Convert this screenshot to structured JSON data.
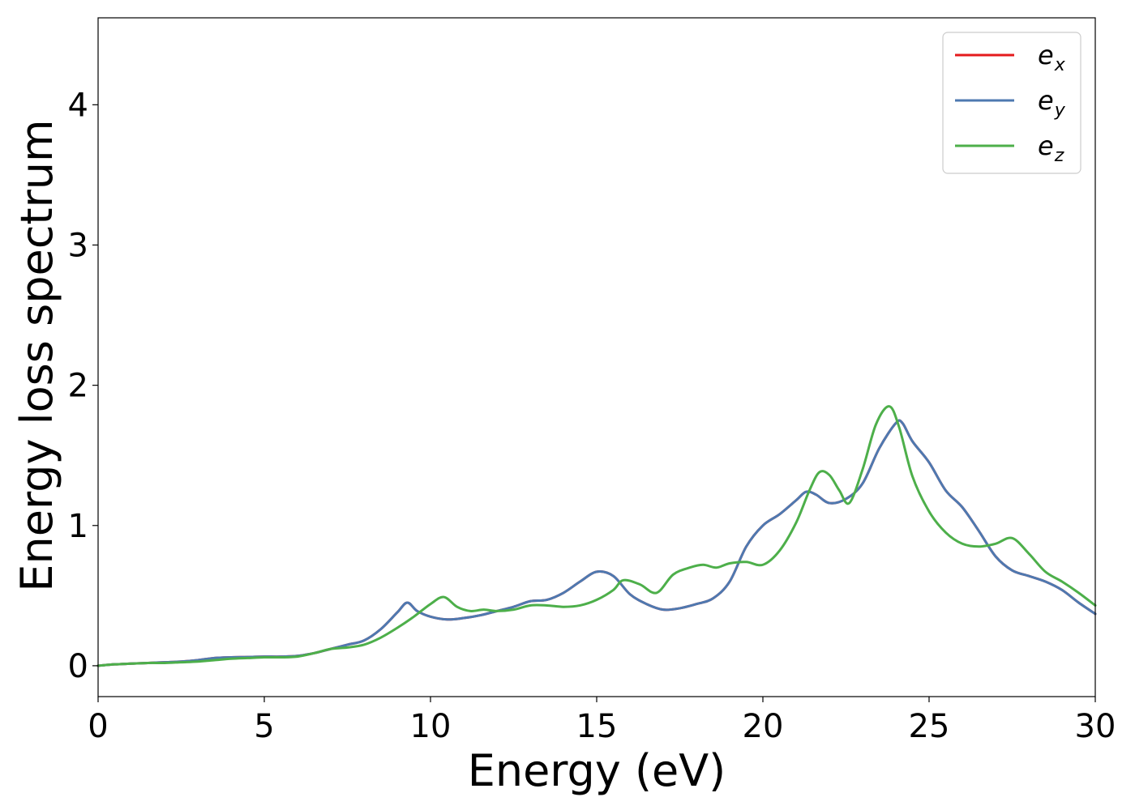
{
  "chart_data": {
    "type": "line",
    "title": "",
    "xlabel": "Energy (eV)",
    "ylabel": "Energy loss spectrum",
    "xlim": [
      0,
      30
    ],
    "ylim": [
      -0.22,
      4.62
    ],
    "xticks": [
      0,
      5,
      10,
      15,
      20,
      25,
      30
    ],
    "yticks": [
      0,
      1,
      2,
      3,
      4
    ],
    "grid": false,
    "legend_position": "top-right",
    "series": [
      {
        "base": "e",
        "sub": "x",
        "color": "#e41a1c",
        "note_hidden_under": "e_y",
        "x": [
          0,
          0.5,
          1,
          1.5,
          2,
          2.5,
          3,
          3.5,
          4,
          4.5,
          5,
          5.5,
          6,
          6.5,
          7,
          7.5,
          8,
          8.5,
          9,
          9.3,
          9.6,
          10,
          10.5,
          11,
          11.5,
          12,
          12.5,
          13,
          13.5,
          14,
          14.5,
          15,
          15.5,
          16,
          16.5,
          17,
          17.5,
          18,
          18.5,
          19,
          19.5,
          20,
          20.5,
          21,
          21.3,
          21.6,
          22,
          22.5,
          23,
          23.5,
          24,
          24.2,
          24.5,
          25,
          25.5,
          26,
          26.5,
          27,
          27.5,
          28,
          28.5,
          29,
          29.5,
          30
        ],
        "y": [
          0,
          0.01,
          0.015,
          0.02,
          0.025,
          0.03,
          0.04,
          0.055,
          0.06,
          0.062,
          0.065,
          0.065,
          0.07,
          0.09,
          0.12,
          0.15,
          0.18,
          0.26,
          0.38,
          0.45,
          0.39,
          0.35,
          0.33,
          0.34,
          0.36,
          0.39,
          0.42,
          0.46,
          0.47,
          0.52,
          0.6,
          0.67,
          0.64,
          0.51,
          0.44,
          0.4,
          0.41,
          0.44,
          0.48,
          0.6,
          0.85,
          1.0,
          1.08,
          1.18,
          1.24,
          1.22,
          1.16,
          1.19,
          1.3,
          1.55,
          1.73,
          1.73,
          1.6,
          1.45,
          1.25,
          1.13,
          0.96,
          0.78,
          0.68,
          0.64,
          0.6,
          0.54,
          0.45,
          0.37
        ]
      },
      {
        "base": "e",
        "sub": "y",
        "color": "#4e79b0",
        "x": [
          0,
          0.5,
          1,
          1.5,
          2,
          2.5,
          3,
          3.5,
          4,
          4.5,
          5,
          5.5,
          6,
          6.5,
          7,
          7.5,
          8,
          8.5,
          9,
          9.3,
          9.6,
          10,
          10.5,
          11,
          11.5,
          12,
          12.5,
          13,
          13.5,
          14,
          14.5,
          15,
          15.5,
          16,
          16.5,
          17,
          17.5,
          18,
          18.5,
          19,
          19.5,
          20,
          20.5,
          21,
          21.3,
          21.6,
          22,
          22.5,
          23,
          23.5,
          24,
          24.2,
          24.5,
          25,
          25.5,
          26,
          26.5,
          27,
          27.5,
          28,
          28.5,
          29,
          29.5,
          30
        ],
        "y": [
          0,
          0.01,
          0.015,
          0.02,
          0.025,
          0.03,
          0.04,
          0.055,
          0.06,
          0.062,
          0.065,
          0.065,
          0.07,
          0.09,
          0.12,
          0.15,
          0.18,
          0.26,
          0.38,
          0.45,
          0.39,
          0.35,
          0.33,
          0.34,
          0.36,
          0.39,
          0.42,
          0.46,
          0.47,
          0.52,
          0.6,
          0.67,
          0.64,
          0.51,
          0.44,
          0.4,
          0.41,
          0.44,
          0.48,
          0.6,
          0.85,
          1.0,
          1.08,
          1.18,
          1.24,
          1.22,
          1.16,
          1.19,
          1.3,
          1.55,
          1.73,
          1.73,
          1.6,
          1.45,
          1.25,
          1.13,
          0.96,
          0.78,
          0.68,
          0.64,
          0.6,
          0.54,
          0.45,
          0.37
        ]
      },
      {
        "base": "e",
        "sub": "z",
        "color": "#4daf4a",
        "x": [
          0,
          0.5,
          1,
          1.5,
          2,
          2.5,
          3,
          3.5,
          4,
          4.5,
          5,
          5.5,
          6,
          6.5,
          7,
          7.5,
          8,
          8.5,
          9,
          9.5,
          10,
          10.4,
          10.8,
          11.2,
          11.6,
          12,
          12.5,
          13,
          13.5,
          14,
          14.5,
          15,
          15.5,
          15.8,
          16.3,
          16.8,
          17.3,
          17.8,
          18.2,
          18.6,
          19,
          19.5,
          20,
          20.5,
          21,
          21.4,
          21.7,
          22,
          22.3,
          22.6,
          23,
          23.4,
          23.8,
          24.1,
          24.5,
          25,
          25.5,
          26,
          26.5,
          27,
          27.5,
          28,
          28.5,
          29,
          29.5,
          30
        ],
        "y": [
          0,
          0.01,
          0.015,
          0.02,
          0.02,
          0.025,
          0.03,
          0.04,
          0.05,
          0.055,
          0.06,
          0.06,
          0.065,
          0.09,
          0.12,
          0.13,
          0.15,
          0.2,
          0.27,
          0.35,
          0.44,
          0.49,
          0.42,
          0.39,
          0.4,
          0.39,
          0.4,
          0.43,
          0.43,
          0.42,
          0.43,
          0.47,
          0.54,
          0.61,
          0.58,
          0.52,
          0.65,
          0.7,
          0.72,
          0.7,
          0.73,
          0.74,
          0.72,
          0.82,
          1.02,
          1.25,
          1.38,
          1.36,
          1.25,
          1.16,
          1.4,
          1.72,
          1.85,
          1.7,
          1.35,
          1.1,
          0.95,
          0.87,
          0.85,
          0.87,
          0.91,
          0.8,
          0.67,
          0.6,
          0.52,
          0.43
        ]
      }
    ]
  }
}
